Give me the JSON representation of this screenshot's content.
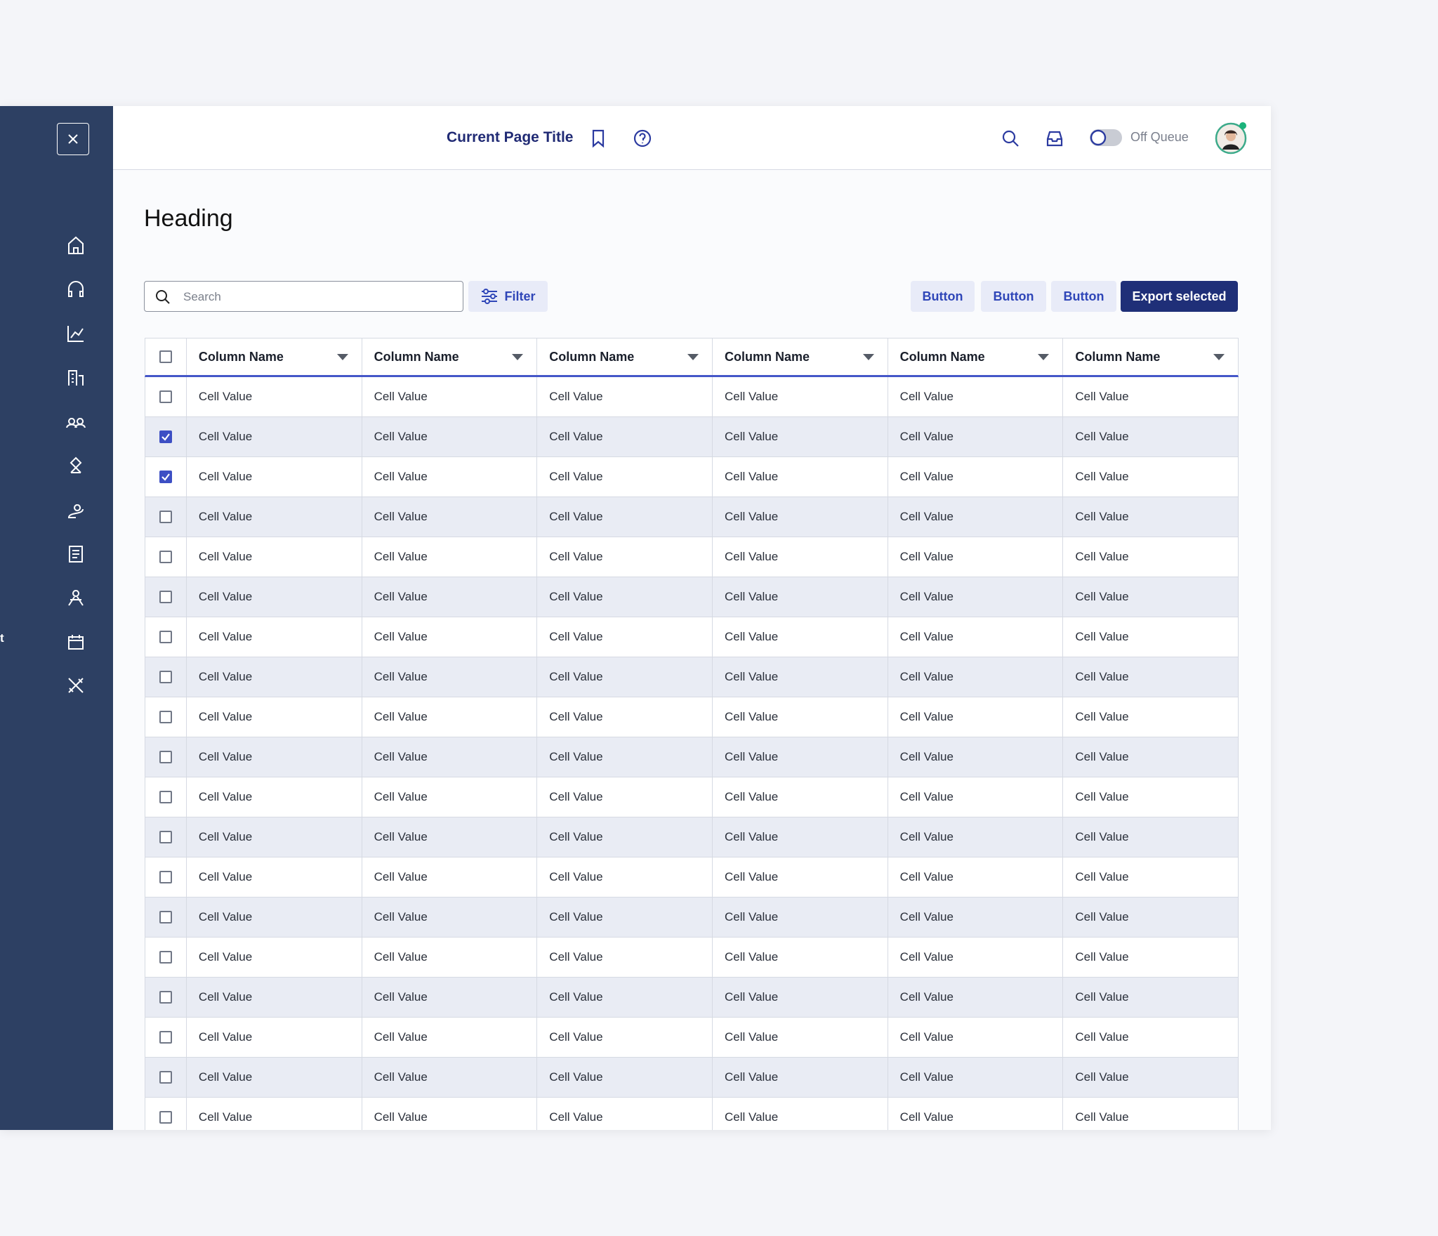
{
  "sidebar": {
    "clipped_label": "t"
  },
  "header": {
    "page_title": "Current Page Title",
    "queue_status": "Off Queue"
  },
  "heading": "Heading",
  "toolbar": {
    "search_placeholder": "Search",
    "filter": "Filter",
    "buttons": [
      "Button",
      "Button",
      "Button"
    ],
    "primary_button": "Export selected"
  },
  "table": {
    "columns": [
      "Column Name",
      "Column Name",
      "Column Name",
      "Column Name",
      "Column Name",
      "Column Name"
    ],
    "rows": [
      {
        "checked": false,
        "cells": [
          "Cell Value",
          "Cell Value",
          "Cell Value",
          "Cell Value",
          "Cell Value",
          "Cell Value"
        ]
      },
      {
        "checked": true,
        "cells": [
          "Cell Value",
          "Cell Value",
          "Cell Value",
          "Cell Value",
          "Cell Value",
          "Cell Value"
        ]
      },
      {
        "checked": true,
        "cells": [
          "Cell Value",
          "Cell Value",
          "Cell Value",
          "Cell Value",
          "Cell Value",
          "Cell Value"
        ]
      },
      {
        "checked": false,
        "cells": [
          "Cell Value",
          "Cell Value",
          "Cell Value",
          "Cell Value",
          "Cell Value",
          "Cell Value"
        ]
      },
      {
        "checked": false,
        "cells": [
          "Cell Value",
          "Cell Value",
          "Cell Value",
          "Cell Value",
          "Cell Value",
          "Cell Value"
        ]
      },
      {
        "checked": false,
        "cells": [
          "Cell Value",
          "Cell Value",
          "Cell Value",
          "Cell Value",
          "Cell Value",
          "Cell Value"
        ]
      },
      {
        "checked": false,
        "cells": [
          "Cell Value",
          "Cell Value",
          "Cell Value",
          "Cell Value",
          "Cell Value",
          "Cell Value"
        ]
      },
      {
        "checked": false,
        "cells": [
          "Cell Value",
          "Cell Value",
          "Cell Value",
          "Cell Value",
          "Cell Value",
          "Cell Value"
        ]
      },
      {
        "checked": false,
        "cells": [
          "Cell Value",
          "Cell Value",
          "Cell Value",
          "Cell Value",
          "Cell Value",
          "Cell Value"
        ]
      },
      {
        "checked": false,
        "cells": [
          "Cell Value",
          "Cell Value",
          "Cell Value",
          "Cell Value",
          "Cell Value",
          "Cell Value"
        ]
      },
      {
        "checked": false,
        "cells": [
          "Cell Value",
          "Cell Value",
          "Cell Value",
          "Cell Value",
          "Cell Value",
          "Cell Value"
        ]
      },
      {
        "checked": false,
        "cells": [
          "Cell Value",
          "Cell Value",
          "Cell Value",
          "Cell Value",
          "Cell Value",
          "Cell Value"
        ]
      },
      {
        "checked": false,
        "cells": [
          "Cell Value",
          "Cell Value",
          "Cell Value",
          "Cell Value",
          "Cell Value",
          "Cell Value"
        ]
      },
      {
        "checked": false,
        "cells": [
          "Cell Value",
          "Cell Value",
          "Cell Value",
          "Cell Value",
          "Cell Value",
          "Cell Value"
        ]
      },
      {
        "checked": false,
        "cells": [
          "Cell Value",
          "Cell Value",
          "Cell Value",
          "Cell Value",
          "Cell Value",
          "Cell Value"
        ]
      },
      {
        "checked": false,
        "cells": [
          "Cell Value",
          "Cell Value",
          "Cell Value",
          "Cell Value",
          "Cell Value",
          "Cell Value"
        ]
      },
      {
        "checked": false,
        "cells": [
          "Cell Value",
          "Cell Value",
          "Cell Value",
          "Cell Value",
          "Cell Value",
          "Cell Value"
        ]
      },
      {
        "checked": false,
        "cells": [
          "Cell Value",
          "Cell Value",
          "Cell Value",
          "Cell Value",
          "Cell Value",
          "Cell Value"
        ]
      },
      {
        "checked": false,
        "cells": [
          "Cell Value",
          "Cell Value",
          "Cell Value",
          "Cell Value",
          "Cell Value",
          "Cell Value"
        ]
      }
    ]
  }
}
